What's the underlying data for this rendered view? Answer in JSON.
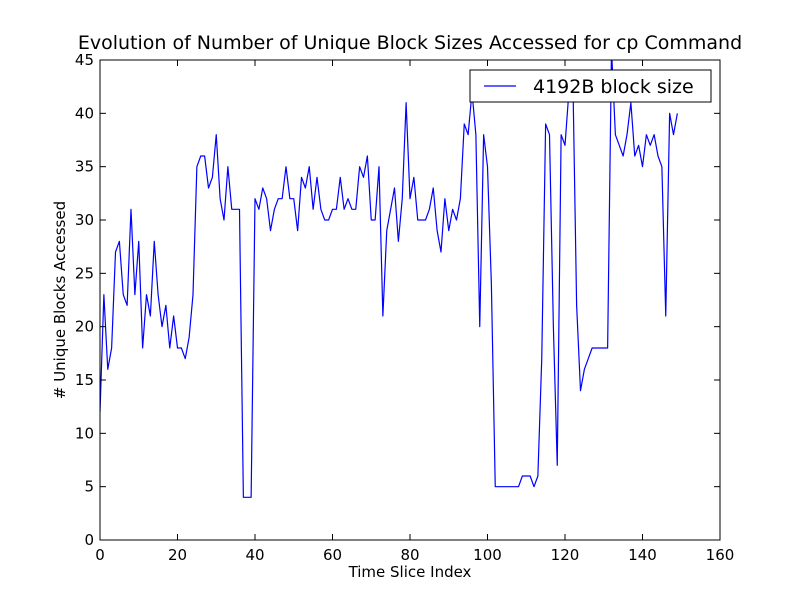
{
  "chart_data": {
    "type": "line",
    "title": "Evolution of Number of Unique Block Sizes Accessed for cp Command",
    "xlabel": "Time Slice Index",
    "ylabel": "# Unique Blocks Accessed",
    "xlim": [
      0,
      160
    ],
    "ylim": [
      0,
      45
    ],
    "xticks": [
      0,
      20,
      40,
      60,
      80,
      100,
      120,
      140,
      160
    ],
    "yticks": [
      0,
      5,
      10,
      15,
      20,
      25,
      30,
      35,
      40,
      45
    ],
    "grid": false,
    "legend_position": "top-right",
    "series": [
      {
        "name": "4192B block size",
        "color": "#0000ff",
        "x": [
          0,
          1,
          2,
          3,
          4,
          5,
          6,
          7,
          8,
          9,
          10,
          11,
          12,
          13,
          14,
          15,
          16,
          17,
          18,
          19,
          20,
          21,
          22,
          23,
          24,
          25,
          26,
          27,
          28,
          29,
          30,
          31,
          32,
          33,
          34,
          35,
          36,
          37,
          38,
          39,
          40,
          41,
          42,
          43,
          44,
          45,
          46,
          47,
          48,
          49,
          50,
          51,
          52,
          53,
          54,
          55,
          56,
          57,
          58,
          59,
          60,
          61,
          62,
          63,
          64,
          65,
          66,
          67,
          68,
          69,
          70,
          71,
          72,
          73,
          74,
          75,
          76,
          77,
          78,
          79,
          80,
          81,
          82,
          83,
          84,
          85,
          86,
          87,
          88,
          89,
          90,
          91,
          92,
          93,
          94,
          95,
          96,
          97,
          98,
          99,
          100,
          101,
          102,
          103,
          104,
          105,
          106,
          107,
          108,
          109,
          110,
          111,
          112,
          113,
          114,
          115,
          116,
          117,
          118,
          119,
          120,
          121,
          122,
          123,
          124,
          125,
          126,
          127,
          128,
          129,
          130,
          131,
          132,
          133,
          134,
          135,
          136,
          137,
          138,
          139,
          140,
          141,
          142,
          143,
          144,
          145,
          146,
          147,
          148,
          149
        ],
        "values": [
          12,
          23,
          16,
          18,
          27,
          28,
          23,
          22,
          31,
          23,
          28,
          18,
          23,
          21,
          28,
          23,
          20,
          22,
          18,
          21,
          18,
          18,
          17,
          19,
          23,
          35,
          36,
          36,
          33,
          34,
          38,
          32,
          30,
          35,
          31,
          31,
          31,
          4,
          4,
          4,
          32,
          31,
          33,
          32,
          29,
          31,
          32,
          32,
          35,
          32,
          32,
          29,
          34,
          33,
          35,
          31,
          34,
          31,
          30,
          30,
          31,
          31,
          34,
          31,
          32,
          31,
          31,
          35,
          34,
          36,
          30,
          30,
          35,
          21,
          29,
          31,
          33,
          28,
          32,
          41,
          32,
          34,
          30,
          30,
          30,
          31,
          33,
          29,
          27,
          32,
          29,
          31,
          30,
          32,
          39,
          38,
          42,
          38,
          20,
          38,
          35,
          24,
          5,
          5,
          5,
          5,
          5,
          5,
          5,
          6,
          6,
          6,
          5,
          6,
          17,
          39,
          38,
          20,
          7,
          38,
          37,
          42,
          44,
          22,
          14,
          16,
          17,
          18,
          18,
          18,
          18,
          18,
          46,
          38,
          37,
          36,
          38,
          41,
          36,
          37,
          35,
          38,
          37,
          38,
          36,
          35,
          21,
          40,
          38,
          40
        ]
      }
    ]
  }
}
